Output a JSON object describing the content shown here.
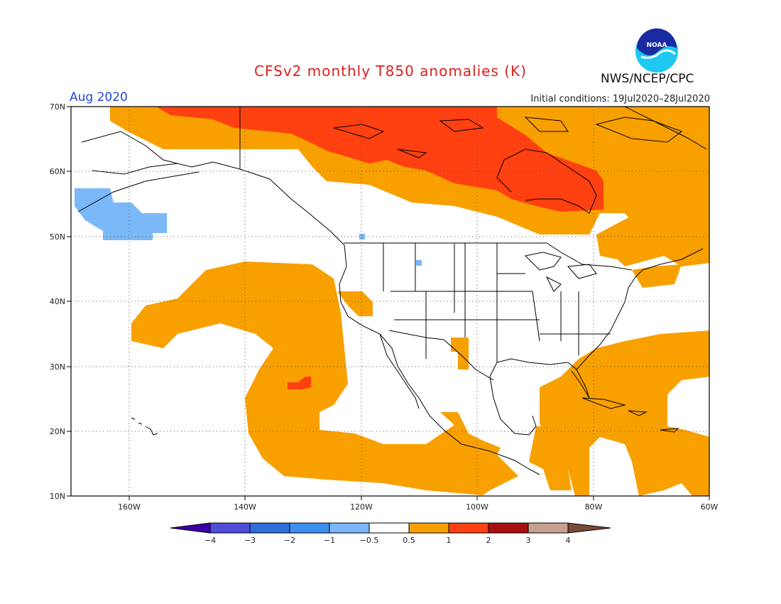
{
  "header": {
    "title": "CFSv2 monthly T850 anomalies (K)",
    "period": "Aug 2020",
    "initial_conditions": "Initial conditions: 19Jul2020–28Jul2020",
    "agency": "NWS/NCEP/CPC",
    "logo_text": "NOAA"
  },
  "axes": {
    "lon_labels": [
      "160W",
      "140W",
      "120W",
      "100W",
      "80W",
      "60W"
    ],
    "lat_labels": [
      "70N",
      "60N",
      "50N",
      "40N",
      "30N",
      "20N",
      "10N"
    ],
    "lon_range": [
      -170,
      -60
    ],
    "lat_range": [
      10,
      70
    ],
    "grid": "dotted"
  },
  "legend": {
    "bounds": [
      -4,
      -3,
      -2,
      -1,
      -0.5,
      0.5,
      1,
      2,
      3,
      4
    ],
    "labels": [
      "−4",
      "−3",
      "−2",
      "−1",
      "−0.5",
      "0.5",
      "1",
      "2",
      "3",
      "4"
    ],
    "colors": [
      "#3a00a8",
      "#4e4ed8",
      "#2e6ed8",
      "#3b8ff0",
      "#7ab8f8",
      "#ffffff",
      "#f8a000",
      "#ff4010",
      "#a81010",
      "#c8a090",
      "#7a4a3a"
    ]
  },
  "colors": {
    "warm_05_1": "#f8a000",
    "warm_1_2": "#ff4010",
    "cool_05_1": "#7ab8f8",
    "coast": "#000000",
    "grid": "#555555"
  }
}
